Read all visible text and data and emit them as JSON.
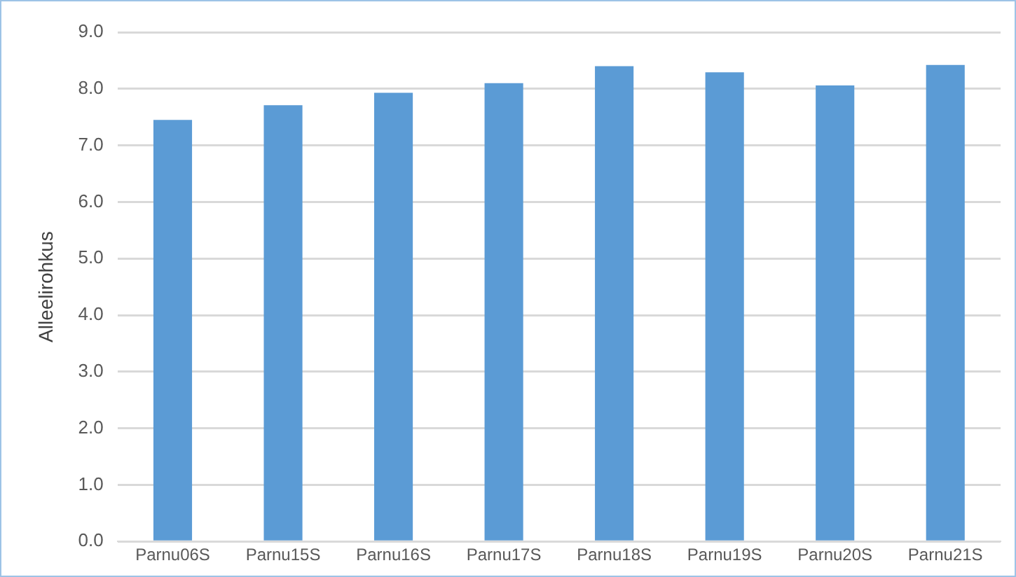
{
  "chart_data": {
    "type": "bar",
    "ylabel": "Alleelirohkus",
    "categories": [
      "Parnu06S",
      "Parnu15S",
      "Parnu16S",
      "Parnu17S",
      "Parnu18S",
      "Parnu19S",
      "Parnu20S",
      "Parnu21S"
    ],
    "values": [
      7.45,
      7.71,
      7.93,
      8.1,
      8.4,
      8.29,
      8.06,
      8.42
    ],
    "color": "#5b9bd5",
    "ylim": [
      0,
      9
    ],
    "yticks": [
      {
        "value": 0,
        "label": "0.0"
      },
      {
        "value": 1,
        "label": "1.0"
      },
      {
        "value": 2,
        "label": "2.0"
      },
      {
        "value": 3,
        "label": "3.0"
      },
      {
        "value": 4,
        "label": "4.0"
      },
      {
        "value": 5,
        "label": "5.0"
      },
      {
        "value": 6,
        "label": "6.0"
      },
      {
        "value": 7,
        "label": "7.0"
      },
      {
        "value": 8,
        "label": "8.0"
      },
      {
        "value": 9,
        "label": "9.0"
      }
    ],
    "grid": "y",
    "legend": false
  }
}
